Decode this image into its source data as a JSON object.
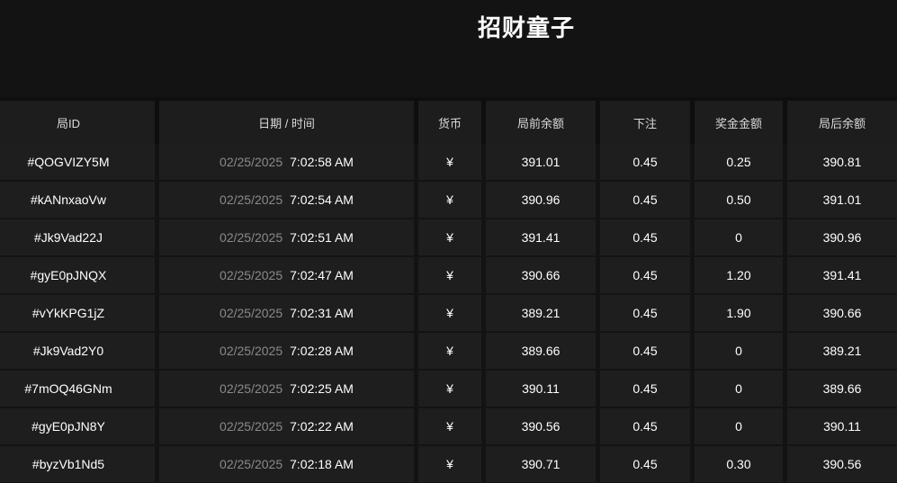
{
  "title": "招财童子",
  "colors": {
    "page_bg": "#131313",
    "header_gap_bg": "#0e0e0e",
    "header_cell_bg": "#1d1d1e",
    "row_cell_bg": "#1e1e1f",
    "separator": "#131313",
    "text_primary": "#ffffff",
    "text_muted": "#8a8a8a",
    "header_text": "#dadada"
  },
  "table": {
    "headers": [
      "局ID",
      "日期 / 时间",
      "货币",
      "局前余额",
      "下注",
      "奖金金额",
      "局后余额"
    ],
    "rows": [
      {
        "id": "#QOGVIZY5M",
        "date": "02/25/2025",
        "time": "7:02:58 AM",
        "currency": "¥",
        "balance_before": "391.01",
        "bet": "0.45",
        "prize": "0.25",
        "balance_after": "390.81"
      },
      {
        "id": "#kANnxaoVw",
        "date": "02/25/2025",
        "time": "7:02:54 AM",
        "currency": "¥",
        "balance_before": "390.96",
        "bet": "0.45",
        "prize": "0.50",
        "balance_after": "391.01"
      },
      {
        "id": "#Jk9Vad22J",
        "date": "02/25/2025",
        "time": "7:02:51 AM",
        "currency": "¥",
        "balance_before": "391.41",
        "bet": "0.45",
        "prize": "0",
        "balance_after": "390.96"
      },
      {
        "id": "#gyE0pJNQX",
        "date": "02/25/2025",
        "time": "7:02:47 AM",
        "currency": "¥",
        "balance_before": "390.66",
        "bet": "0.45",
        "prize": "1.20",
        "balance_after": "391.41"
      },
      {
        "id": "#vYkKPG1jZ",
        "date": "02/25/2025",
        "time": "7:02:31 AM",
        "currency": "¥",
        "balance_before": "389.21",
        "bet": "0.45",
        "prize": "1.90",
        "balance_after": "390.66"
      },
      {
        "id": "#Jk9Vad2Y0",
        "date": "02/25/2025",
        "time": "7:02:28 AM",
        "currency": "¥",
        "balance_before": "389.66",
        "bet": "0.45",
        "prize": "0",
        "balance_after": "389.21"
      },
      {
        "id": "#7mOQ46GNm",
        "date": "02/25/2025",
        "time": "7:02:25 AM",
        "currency": "¥",
        "balance_before": "390.11",
        "bet": "0.45",
        "prize": "0",
        "balance_after": "389.66"
      },
      {
        "id": "#gyE0pJN8Y",
        "date": "02/25/2025",
        "time": "7:02:22 AM",
        "currency": "¥",
        "balance_before": "390.56",
        "bet": "0.45",
        "prize": "0",
        "balance_after": "390.11"
      },
      {
        "id": "#byzVb1Nd5",
        "date": "02/25/2025",
        "time": "7:02:18 AM",
        "currency": "¥",
        "balance_before": "390.71",
        "bet": "0.45",
        "prize": "0.30",
        "balance_after": "390.56"
      }
    ]
  }
}
